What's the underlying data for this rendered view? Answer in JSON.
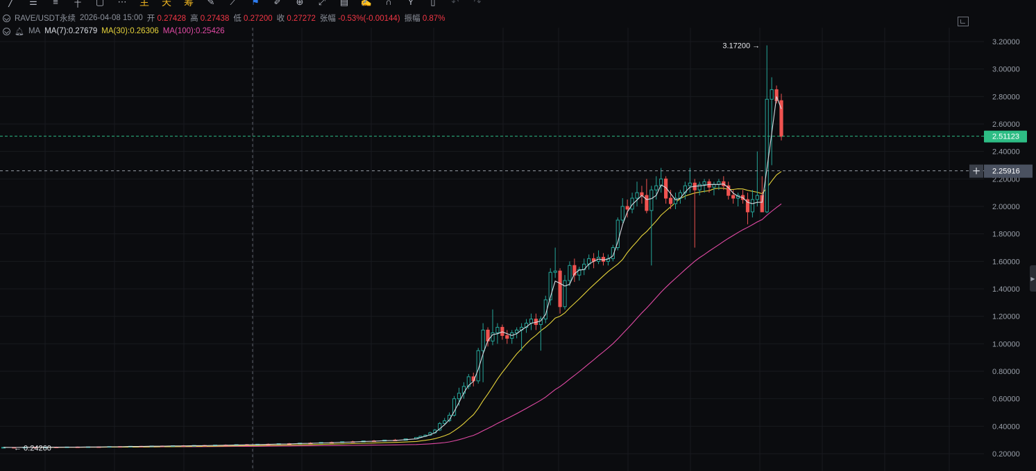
{
  "toolbar": {
    "icons": [
      "trend-line-icon",
      "horizontal-lines-icon",
      "parallel-lines-icon",
      "ray-icon",
      "rectangle-icon",
      "more-icon"
    ],
    "label_main": "主",
    "label_day": "天",
    "label_chip": "筹",
    "tools": [
      "edit-icon",
      "ruler-icon",
      "bookmark-icon",
      "pen-icon",
      "zoom-icon",
      "measure-icon",
      "calendar-icon",
      "brush-icon",
      "magnet-icon",
      "fork-icon",
      "trash-icon",
      "undo-icon",
      "redo-icon"
    ]
  },
  "header": {
    "symbol": "RAVE/USDT永续",
    "datetime": "2026-04-08 15:00",
    "open_label": "开",
    "open": "0.27428",
    "high_label": "高",
    "high": "0.27438",
    "low_label": "低",
    "low": "0.27200",
    "close_label": "收",
    "close": "0.27272",
    "change_label": "张幅",
    "change": "-0.53%(-0.00144)",
    "amp_label": "振幅",
    "amp": "0.87%"
  },
  "indicators": {
    "name": "MA",
    "ma7": "MA(7):0.27679",
    "ma30": "MA(30):0.26306",
    "ma100": "MA(100):0.25426"
  },
  "colors": {
    "up": "#26a69a",
    "down": "#ef5350",
    "ma7": "#d8dbe2",
    "ma30": "#e6d33a",
    "ma100": "#e24aa5",
    "last_price_bg": "#2ebd85",
    "cursor_price_bg": "#4a5160"
  },
  "price_axis": {
    "ticks": [
      "3.20000",
      "3.00000",
      "2.80000",
      "2.60000",
      "2.40000",
      "2.20000",
      "2.00000",
      "1.80000",
      "1.60000",
      "1.40000",
      "1.20000",
      "1.00000",
      "0.80000",
      "0.60000",
      "0.40000",
      "0.20000"
    ],
    "last_price": "2.51123",
    "cursor_price": "2.25916"
  },
  "annotations": {
    "high_marker": "3.17200",
    "low_marker": "0.24260"
  },
  "chart_data": {
    "type": "candlestick",
    "y_range": [
      0.2,
      3.2
    ],
    "last_price": 2.51123,
    "crosshair_price": 2.25916,
    "high": 3.172,
    "low": 0.2426,
    "series": [
      {
        "name": "MA(7)",
        "last": 0.27679
      },
      {
        "name": "MA(30)",
        "last": 0.26306
      },
      {
        "name": "MA(100)",
        "last": 0.25426
      }
    ],
    "candles": [
      [
        0.245,
        0.247,
        0.243,
        0.246
      ],
      [
        0.246,
        0.248,
        0.244,
        0.245
      ],
      [
        0.245,
        0.247,
        0.243,
        0.247
      ],
      [
        0.247,
        0.25,
        0.245,
        0.246
      ],
      [
        0.246,
        0.249,
        0.244,
        0.248
      ],
      [
        0.248,
        0.251,
        0.246,
        0.247
      ],
      [
        0.247,
        0.25,
        0.245,
        0.249
      ],
      [
        0.249,
        0.252,
        0.247,
        0.248
      ],
      [
        0.248,
        0.251,
        0.246,
        0.25
      ],
      [
        0.25,
        0.253,
        0.248,
        0.249
      ],
      [
        0.249,
        0.253,
        0.247,
        0.252
      ],
      [
        0.252,
        0.255,
        0.25,
        0.251
      ],
      [
        0.251,
        0.255,
        0.249,
        0.254
      ],
      [
        0.254,
        0.257,
        0.252,
        0.253
      ],
      [
        0.253,
        0.257,
        0.251,
        0.256
      ],
      [
        0.256,
        0.259,
        0.254,
        0.255
      ],
      [
        0.255,
        0.259,
        0.253,
        0.258
      ],
      [
        0.258,
        0.262,
        0.256,
        0.257
      ],
      [
        0.257,
        0.261,
        0.255,
        0.26
      ],
      [
        0.26,
        0.264,
        0.258,
        0.259
      ],
      [
        0.259,
        0.264,
        0.257,
        0.263
      ],
      [
        0.263,
        0.267,
        0.261,
        0.262
      ],
      [
        0.262,
        0.267,
        0.26,
        0.266
      ],
      [
        0.266,
        0.27,
        0.264,
        0.265
      ],
      [
        0.265,
        0.27,
        0.263,
        0.269
      ],
      [
        0.269,
        0.274,
        0.267,
        0.268
      ],
      [
        0.268,
        0.274,
        0.266,
        0.273
      ],
      [
        0.273,
        0.278,
        0.271,
        0.272
      ],
      [
        0.272,
        0.278,
        0.27,
        0.277
      ],
      [
        0.277,
        0.283,
        0.275,
        0.276
      ],
      [
        0.276,
        0.283,
        0.274,
        0.282
      ],
      [
        0.282,
        0.288,
        0.28,
        0.281
      ],
      [
        0.281,
        0.288,
        0.279,
        0.287
      ],
      [
        0.287,
        0.294,
        0.285,
        0.286
      ],
      [
        0.286,
        0.294,
        0.284,
        0.293
      ],
      [
        0.293,
        0.3,
        0.291,
        0.292
      ],
      [
        0.292,
        0.3,
        0.29,
        0.299
      ],
      [
        0.299,
        0.307,
        0.297,
        0.298
      ],
      [
        0.298,
        0.31,
        0.296,
        0.308
      ],
      [
        0.308,
        0.32,
        0.305,
        0.318
      ],
      [
        0.318,
        0.33,
        0.315,
        0.327
      ],
      [
        0.327,
        0.34,
        0.322,
        0.335
      ],
      [
        0.335,
        0.36,
        0.33,
        0.352
      ],
      [
        0.352,
        0.38,
        0.345,
        0.372
      ],
      [
        0.372,
        0.43,
        0.365,
        0.42
      ],
      [
        0.42,
        0.46,
        0.41,
        0.44
      ],
      [
        0.44,
        0.5,
        0.43,
        0.48
      ],
      [
        0.48,
        0.62,
        0.47,
        0.6
      ],
      [
        0.6,
        0.68,
        0.55,
        0.64
      ],
      [
        0.64,
        0.72,
        0.6,
        0.69
      ],
      [
        0.69,
        0.78,
        0.67,
        0.76
      ],
      [
        0.76,
        0.79,
        0.69,
        0.73
      ],
      [
        0.73,
        0.97,
        0.71,
        0.95
      ],
      [
        0.95,
        1.15,
        0.72,
        1.1
      ],
      [
        1.1,
        1.12,
        0.98,
        1.02
      ],
      [
        1.02,
        1.25,
        0.99,
        1.08
      ],
      [
        1.08,
        1.15,
        1.0,
        1.12
      ],
      [
        1.12,
        1.14,
        1.03,
        1.06
      ],
      [
        1.06,
        1.1,
        1.0,
        1.04
      ],
      [
        1.04,
        1.1,
        1.0,
        1.08
      ],
      [
        1.08,
        1.12,
        1.04,
        1.1
      ],
      [
        1.1,
        1.15,
        0.95,
        1.12
      ],
      [
        1.12,
        1.18,
        1.08,
        1.15
      ],
      [
        1.15,
        1.22,
        1.1,
        1.18
      ],
      [
        1.18,
        1.22,
        1.1,
        1.14
      ],
      [
        1.14,
        1.2,
        0.95,
        1.18
      ],
      [
        1.18,
        1.35,
        1.15,
        1.32
      ],
      [
        1.32,
        1.55,
        1.28,
        1.52
      ],
      [
        1.52,
        1.7,
        1.48,
        1.53
      ],
      [
        1.53,
        1.55,
        1.22,
        1.27
      ],
      [
        1.27,
        1.5,
        1.25,
        1.46
      ],
      [
        1.46,
        1.6,
        1.42,
        1.57
      ],
      [
        1.57,
        1.62,
        1.45,
        1.5
      ],
      [
        1.5,
        1.56,
        1.46,
        1.54
      ],
      [
        1.54,
        1.62,
        1.5,
        1.58
      ],
      [
        1.58,
        1.65,
        1.54,
        1.62
      ],
      [
        1.62,
        1.66,
        1.55,
        1.6
      ],
      [
        1.6,
        1.68,
        1.58,
        1.63
      ],
      [
        1.63,
        1.66,
        1.57,
        1.6
      ],
      [
        1.6,
        1.65,
        1.57,
        1.62
      ],
      [
        1.62,
        1.72,
        1.6,
        1.7
      ],
      [
        1.7,
        1.92,
        1.68,
        1.9
      ],
      [
        1.9,
        2.06,
        1.88,
        2.0
      ],
      [
        2.0,
        2.05,
        1.92,
        1.98
      ],
      [
        1.98,
        2.1,
        1.95,
        2.06
      ],
      [
        2.06,
        2.18,
        2.0,
        2.1
      ],
      [
        2.1,
        2.15,
        2.02,
        2.08
      ],
      [
        2.08,
        2.2,
        1.95,
        1.97
      ],
      [
        1.97,
        2.15,
        1.57,
        2.12
      ],
      [
        2.12,
        2.22,
        2.05,
        2.15
      ],
      [
        2.15,
        2.28,
        2.1,
        2.2
      ],
      [
        2.2,
        2.22,
        2.02,
        2.06
      ],
      [
        2.06,
        2.12,
        1.98,
        2.02
      ],
      [
        2.02,
        2.1,
        1.98,
        2.06
      ],
      [
        2.06,
        2.12,
        2.02,
        2.1
      ],
      [
        2.1,
        2.18,
        2.05,
        2.15
      ],
      [
        2.15,
        2.28,
        2.1,
        2.17
      ],
      [
        2.17,
        2.2,
        1.7,
        2.12
      ],
      [
        2.12,
        2.18,
        2.08,
        2.16
      ],
      [
        2.16,
        2.2,
        2.1,
        2.18
      ],
      [
        2.18,
        2.2,
        2.1,
        2.14
      ],
      [
        2.14,
        2.18,
        2.08,
        2.16
      ],
      [
        2.16,
        2.2,
        2.12,
        2.18
      ],
      [
        2.18,
        2.22,
        2.12,
        2.15
      ],
      [
        2.15,
        2.18,
        2.05,
        2.08
      ],
      [
        2.08,
        2.12,
        2.02,
        2.06
      ],
      [
        2.06,
        2.1,
        2.0,
        2.08
      ],
      [
        2.08,
        2.12,
        2.02,
        2.05
      ],
      [
        2.05,
        2.1,
        1.87,
        1.96
      ],
      [
        1.96,
        2.12,
        1.92,
        2.05
      ],
      [
        2.05,
        2.4,
        2.0,
        2.08
      ],
      [
        2.08,
        2.22,
        1.96,
        1.96
      ],
      [
        1.96,
        3.172,
        1.95,
        2.78
      ],
      [
        2.78,
        2.94,
        2.3,
        2.85
      ],
      [
        2.85,
        2.88,
        2.75,
        2.77
      ],
      [
        2.77,
        2.82,
        2.48,
        2.51
      ]
    ]
  }
}
